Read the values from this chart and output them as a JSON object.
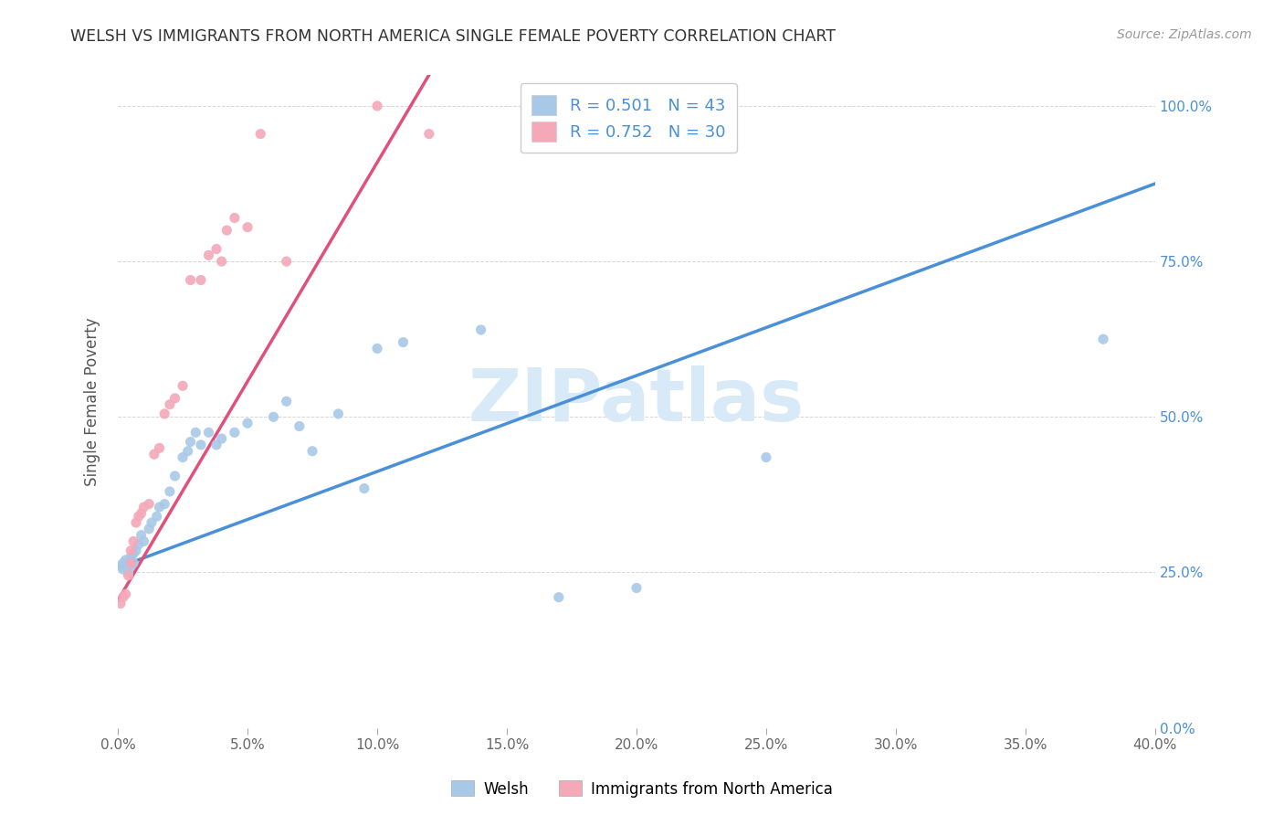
{
  "title": "WELSH VS IMMIGRANTS FROM NORTH AMERICA SINGLE FEMALE POVERTY CORRELATION CHART",
  "source": "Source: ZipAtlas.com",
  "ylabel": "Single Female Poverty",
  "legend_label_1": "Welsh",
  "legend_label_2": "Immigrants from North America",
  "r1": 0.501,
  "n1": 43,
  "r2": 0.752,
  "n2": 30,
  "color_welsh": "#a8c8e8",
  "color_immigrant": "#f4a8b8",
  "color_line_welsh": "#4a90d9",
  "color_line_immigrant": "#e0507a",
  "watermark_color": "#d8eaf8",
  "welsh_x": [
    0.001,
    0.002,
    0.002,
    0.003,
    0.004,
    0.005,
    0.005,
    0.006,
    0.006,
    0.007,
    0.008,
    0.009,
    0.01,
    0.012,
    0.013,
    0.015,
    0.016,
    0.018,
    0.02,
    0.022,
    0.025,
    0.027,
    0.028,
    0.03,
    0.032,
    0.035,
    0.038,
    0.04,
    0.045,
    0.05,
    0.06,
    0.065,
    0.07,
    0.075,
    0.085,
    0.095,
    0.1,
    0.11,
    0.14,
    0.17,
    0.2,
    0.25,
    0.38
  ],
  "welsh_y": [
    0.26,
    0.255,
    0.265,
    0.27,
    0.25,
    0.26,
    0.275,
    0.265,
    0.28,
    0.285,
    0.295,
    0.31,
    0.3,
    0.32,
    0.33,
    0.34,
    0.355,
    0.36,
    0.38,
    0.405,
    0.435,
    0.445,
    0.46,
    0.475,
    0.455,
    0.475,
    0.455,
    0.465,
    0.475,
    0.49,
    0.5,
    0.525,
    0.485,
    0.445,
    0.505,
    0.385,
    0.61,
    0.62,
    0.64,
    0.21,
    0.225,
    0.435,
    0.625
  ],
  "immigrant_x": [
    0.001,
    0.002,
    0.003,
    0.004,
    0.005,
    0.005,
    0.006,
    0.007,
    0.008,
    0.009,
    0.01,
    0.012,
    0.014,
    0.016,
    0.018,
    0.02,
    0.022,
    0.025,
    0.028,
    0.032,
    0.035,
    0.038,
    0.04,
    0.042,
    0.045,
    0.05,
    0.055,
    0.065,
    0.1,
    0.12
  ],
  "immigrant_y": [
    0.2,
    0.21,
    0.215,
    0.245,
    0.265,
    0.285,
    0.3,
    0.33,
    0.34,
    0.345,
    0.355,
    0.36,
    0.44,
    0.45,
    0.505,
    0.52,
    0.53,
    0.55,
    0.72,
    0.72,
    0.76,
    0.77,
    0.75,
    0.8,
    0.82,
    0.805,
    0.955,
    0.75,
    1.0,
    0.955
  ],
  "xlim": [
    0.0,
    0.4
  ],
  "ylim": [
    0.0,
    1.05
  ],
  "x_ticks": [
    0.0,
    0.05,
    0.1,
    0.15,
    0.2,
    0.25,
    0.3,
    0.35,
    0.4
  ],
  "y_ticks": [
    0.0,
    0.25,
    0.5,
    0.75,
    1.0
  ],
  "line_welsh_x0": 0.0,
  "line_welsh_y0": 0.258,
  "line_welsh_x1": 0.4,
  "line_welsh_y1": 0.875,
  "line_imm_x0": 0.0,
  "line_imm_y0": 0.205,
  "line_imm_x1": 0.12,
  "line_imm_y1": 1.05
}
